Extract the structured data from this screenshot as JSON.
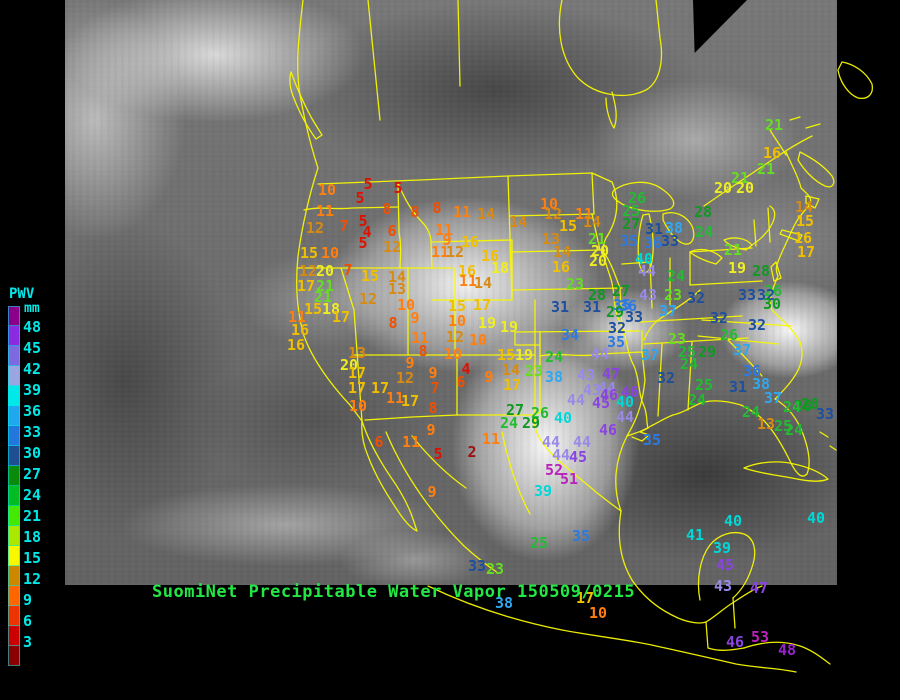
{
  "caption": {
    "text": "SuomiNet Precipitable Water Vapor 150509/0215",
    "color": "#22e844"
  },
  "legend": {
    "title": "PWV",
    "unit": "mm",
    "text_color": "#00e8e8",
    "labels": [
      "48",
      "45",
      "42",
      "39",
      "36",
      "33",
      "30",
      "27",
      "24",
      "21",
      "18",
      "15",
      "12",
      "9",
      "6",
      "3"
    ],
    "segment_colors": [
      "#8a008a",
      "#8a2be2",
      "#7d6ae0",
      "#9aa6e2",
      "#00e8e8",
      "#1fa8ee",
      "#2277dd",
      "#1d4f92",
      "#0a8a0a",
      "#00bb22",
      "#44e800",
      "#aae800",
      "#f8f800",
      "#cc8800",
      "#ff6600",
      "#ee3300",
      "#cc0000",
      "#8a0000"
    ]
  },
  "map": {
    "outline_color": "#f8f800"
  },
  "scale_bins": [
    {
      "max": 2,
      "color": "#991111"
    },
    {
      "max": 5,
      "color": "#dd1100"
    },
    {
      "max": 8,
      "color": "#ee4f00"
    },
    {
      "max": 11,
      "color": "#ff7f11"
    },
    {
      "max": 14,
      "color": "#d88a11"
    },
    {
      "max": 17,
      "color": "#f0c000"
    },
    {
      "max": 20,
      "color": "#eeee22"
    },
    {
      "max": 23,
      "color": "#66dd22"
    },
    {
      "max": 26,
      "color": "#22bb33"
    },
    {
      "max": 30,
      "color": "#0f9922"
    },
    {
      "max": 33,
      "color": "#1d4f9e"
    },
    {
      "max": 36,
      "color": "#2d7ae0"
    },
    {
      "max": 38,
      "color": "#2fa8f0"
    },
    {
      "max": 41,
      "color": "#00d8d8"
    },
    {
      "max": 44,
      "color": "#998ae8"
    },
    {
      "max": 47,
      "color": "#8a44e0"
    },
    {
      "max": 50,
      "color": "#9922cc"
    },
    {
      "max": 99,
      "color": "#bb22bb"
    }
  ],
  "stations": [
    [
      10,
      327,
      190
    ],
    [
      5,
      368,
      184
    ],
    [
      5,
      398,
      188
    ],
    [
      5,
      360,
      198
    ],
    [
      11,
      325,
      211
    ],
    [
      8,
      387,
      209
    ],
    [
      8,
      415,
      212
    ],
    [
      8,
      437,
      208
    ],
    [
      11,
      462,
      212
    ],
    [
      14,
      486,
      214
    ],
    [
      7,
      344,
      226
    ],
    [
      12,
      315,
      228
    ],
    [
      5,
      363,
      221
    ],
    [
      4,
      367,
      232
    ],
    [
      6,
      392,
      231
    ],
    [
      5,
      363,
      243
    ],
    [
      12,
      392,
      247
    ],
    [
      11,
      444,
      230
    ],
    [
      9,
      447,
      240
    ],
    [
      16,
      470,
      242
    ],
    [
      11,
      440,
      252
    ],
    [
      12,
      455,
      252
    ],
    [
      16,
      490,
      256
    ],
    [
      18,
      500,
      268
    ],
    [
      15,
      309,
      253
    ],
    [
      10,
      330,
      253
    ],
    [
      12,
      308,
      271
    ],
    [
      20,
      325,
      271
    ],
    [
      7,
      348,
      270
    ],
    [
      17,
      306,
      286
    ],
    [
      21,
      325,
      286
    ],
    [
      21,
      323,
      297
    ],
    [
      15,
      370,
      276
    ],
    [
      14,
      397,
      277
    ],
    [
      13,
      397,
      289
    ],
    [
      12,
      368,
      299
    ],
    [
      15,
      313,
      309
    ],
    [
      18,
      331,
      309
    ],
    [
      17,
      341,
      317
    ],
    [
      16,
      467,
      271
    ],
    [
      11,
      468,
      281
    ],
    [
      14,
      483,
      283
    ],
    [
      10,
      549,
      204
    ],
    [
      12,
      553,
      214
    ],
    [
      11,
      584,
      214
    ],
    [
      14,
      592,
      222
    ],
    [
      15,
      568,
      226
    ],
    [
      14,
      518,
      222
    ],
    [
      13,
      551,
      239
    ],
    [
      14,
      562,
      252
    ],
    [
      16,
      561,
      267
    ],
    [
      21,
      597,
      239
    ],
    [
      20,
      600,
      251
    ],
    [
      20,
      598,
      261
    ],
    [
      23,
      575,
      284
    ],
    [
      19,
      509,
      327
    ],
    [
      31,
      560,
      307
    ],
    [
      31,
      592,
      307
    ],
    [
      28,
      597,
      295
    ],
    [
      27,
      621,
      291
    ],
    [
      35,
      622,
      305
    ],
    [
      29,
      615,
      312
    ],
    [
      36,
      628,
      306
    ],
    [
      33,
      634,
      317
    ],
    [
      32,
      617,
      328
    ],
    [
      34,
      570,
      335
    ],
    [
      35,
      616,
      342
    ],
    [
      26,
      637,
      198
    ],
    [
      25,
      631,
      211
    ],
    [
      27,
      631,
      224
    ],
    [
      31,
      654,
      229
    ],
    [
      38,
      674,
      228
    ],
    [
      33,
      670,
      241
    ],
    [
      35,
      629,
      241
    ],
    [
      36,
      653,
      243
    ],
    [
      40,
      644,
      259
    ],
    [
      44,
      647,
      271
    ],
    [
      24,
      676,
      276
    ],
    [
      43,
      648,
      295
    ],
    [
      23,
      673,
      295
    ],
    [
      32,
      696,
      298
    ],
    [
      28,
      703,
      212
    ],
    [
      24,
      704,
      232
    ],
    [
      21,
      733,
      250
    ],
    [
      19,
      737,
      268
    ],
    [
      28,
      761,
      271
    ],
    [
      26,
      773,
      291
    ],
    [
      33,
      747,
      295
    ],
    [
      32,
      766,
      295
    ],
    [
      30,
      772,
      304
    ],
    [
      37,
      668,
      311
    ],
    [
      32,
      719,
      318
    ],
    [
      32,
      757,
      325
    ],
    [
      26,
      729,
      335
    ],
    [
      23,
      677,
      339
    ],
    [
      25,
      687,
      352
    ],
    [
      29,
      707,
      352
    ],
    [
      37,
      742,
      350
    ],
    [
      24,
      689,
      364
    ],
    [
      37,
      650,
      355
    ],
    [
      21,
      774,
      125
    ],
    [
      16,
      772,
      153
    ],
    [
      21,
      766,
      169
    ],
    [
      21,
      740,
      178
    ],
    [
      20,
      723,
      188
    ],
    [
      20,
      745,
      188
    ],
    [
      14,
      804,
      207
    ],
    [
      15,
      805,
      221
    ],
    [
      16,
      803,
      238
    ],
    [
      17,
      806,
      252
    ],
    [
      36,
      752,
      371
    ],
    [
      38,
      761,
      384
    ],
    [
      31,
      738,
      387
    ],
    [
      37,
      773,
      398
    ],
    [
      25,
      704,
      385
    ],
    [
      24,
      697,
      400
    ],
    [
      32,
      666,
      378
    ],
    [
      24,
      751,
      412
    ],
    [
      13,
      766,
      424
    ],
    [
      25,
      783,
      426
    ],
    [
      28,
      803,
      406
    ],
    [
      24,
      792,
      407
    ],
    [
      35,
      652,
      440
    ],
    [
      33,
      825,
      414
    ],
    [
      24,
      794,
      430
    ],
    [
      28,
      810,
      404
    ],
    [
      15,
      506,
      355
    ],
    [
      19,
      524,
      355
    ],
    [
      14,
      511,
      370
    ],
    [
      23,
      534,
      371
    ],
    [
      38,
      554,
      377
    ],
    [
      43,
      586,
      375
    ],
    [
      47,
      611,
      374
    ],
    [
      17,
      512,
      385
    ],
    [
      24,
      554,
      357
    ],
    [
      27,
      515,
      410
    ],
    [
      26,
      540,
      413
    ],
    [
      24,
      509,
      423
    ],
    [
      29,
      531,
      423
    ],
    [
      40,
      563,
      418
    ],
    [
      44,
      576,
      400
    ],
    [
      45,
      601,
      403
    ],
    [
      43,
      592,
      390
    ],
    [
      44,
      607,
      388
    ],
    [
      46,
      609,
      395
    ],
    [
      44,
      600,
      354
    ],
    [
      46,
      608,
      430
    ],
    [
      44,
      582,
      442
    ],
    [
      44,
      551,
      442
    ],
    [
      44,
      561,
      455
    ],
    [
      45,
      578,
      457
    ],
    [
      52,
      554,
      470
    ],
    [
      51,
      569,
      479
    ],
    [
      39,
      543,
      491
    ],
    [
      46,
      630,
      392
    ],
    [
      40,
      625,
      402
    ],
    [
      44,
      625,
      417
    ],
    [
      15,
      457,
      306
    ],
    [
      17,
      482,
      305
    ],
    [
      10,
      457,
      321
    ],
    [
      19,
      487,
      323
    ],
    [
      12,
      455,
      337
    ],
    [
      10,
      478,
      340
    ],
    [
      10,
      453,
      354
    ],
    [
      4,
      466,
      369
    ],
    [
      6,
      461,
      382
    ],
    [
      9,
      489,
      377
    ],
    [
      13,
      357,
      353
    ],
    [
      20,
      349,
      365
    ],
    [
      17,
      357,
      373
    ],
    [
      17,
      357,
      388
    ],
    [
      17,
      380,
      388
    ],
    [
      10,
      358,
      406
    ],
    [
      11,
      395,
      398
    ],
    [
      17,
      410,
      401
    ],
    [
      8,
      393,
      323
    ],
    [
      9,
      415,
      318
    ],
    [
      10,
      406,
      305
    ],
    [
      11,
      420,
      338
    ],
    [
      8,
      423,
      351
    ],
    [
      9,
      410,
      363
    ],
    [
      12,
      405,
      378
    ],
    [
      9,
      433,
      373
    ],
    [
      7,
      435,
      388
    ],
    [
      8,
      433,
      408
    ],
    [
      9,
      431,
      430
    ],
    [
      11,
      411,
      442
    ],
    [
      5,
      438,
      454
    ],
    [
      2,
      472,
      452
    ],
    [
      6,
      379,
      442
    ],
    [
      11,
      491,
      439
    ],
    [
      16,
      300,
      330
    ],
    [
      16,
      296,
      345
    ],
    [
      11,
      297,
      317
    ],
    [
      9,
      432,
      492
    ],
    [
      33,
      477,
      566
    ],
    [
      23,
      495,
      569
    ],
    [
      25,
      539,
      543
    ],
    [
      35,
      581,
      536
    ],
    [
      38,
      504,
      603
    ],
    [
      17,
      585,
      598
    ],
    [
      10,
      598,
      613
    ],
    [
      41,
      695,
      535
    ],
    [
      40,
      733,
      521
    ],
    [
      39,
      722,
      548
    ],
    [
      45,
      725,
      565
    ],
    [
      43,
      723,
      586
    ],
    [
      47,
      759,
      588
    ],
    [
      46,
      735,
      642
    ],
    [
      53,
      760,
      637
    ],
    [
      48,
      787,
      650
    ],
    [
      40,
      816,
      518
    ]
  ]
}
